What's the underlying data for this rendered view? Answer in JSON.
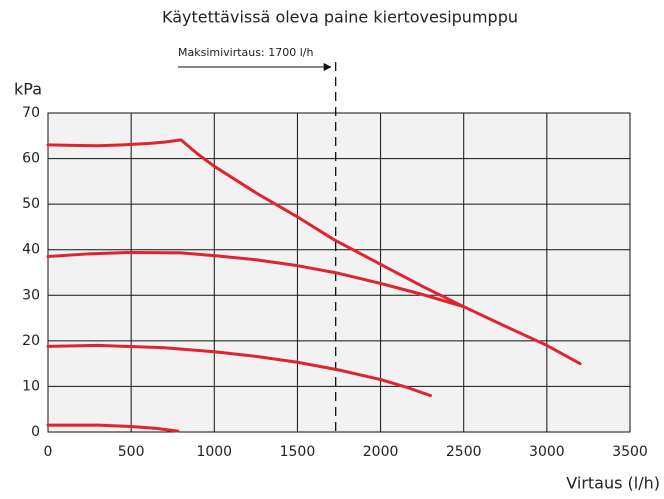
{
  "chart_data": {
    "type": "line",
    "title": "Käytettävissä oleva paine kiertovesipumppu",
    "ylabel": "kPa",
    "xlabel": "Virtaus (l/h)",
    "annotation": {
      "text": "Maksimivirtaus: 1700 l/h",
      "x": 1730
    },
    "color": "#e0242c",
    "series": [
      {
        "x": [
          0,
          150,
          300,
          450,
          600,
          700,
          800,
          900,
          1000,
          1250,
          1500,
          1720,
          2000,
          2250,
          2500,
          2750,
          3000,
          3200
        ],
        "values": [
          63,
          62.9,
          62.8,
          63,
          63.3,
          63.6,
          64.1,
          61,
          58.3,
          52.5,
          47.2,
          42.2,
          36.8,
          32,
          27.5,
          23.2,
          19,
          15
        ]
      },
      {
        "x": [
          0,
          250,
          500,
          800,
          1000,
          1250,
          1500,
          1750,
          2000,
          2250,
          2500
        ],
        "values": [
          38.5,
          39.1,
          39.4,
          39.3,
          38.7,
          37.8,
          36.5,
          34.8,
          32.6,
          30.2,
          27.5
        ]
      },
      {
        "x": [
          0,
          300,
          700,
          1000,
          1250,
          1500,
          1750,
          2000,
          2150,
          2300
        ],
        "values": [
          18.8,
          19,
          18.5,
          17.6,
          16.6,
          15.3,
          13.6,
          11.5,
          9.9,
          8
        ]
      },
      {
        "x": [
          0,
          300,
          500,
          650,
          780
        ],
        "values": [
          1.5,
          1.5,
          1.2,
          0.8,
          0.2
        ]
      }
    ],
    "xlim": [
      0,
      3500
    ],
    "xticks": [
      0,
      500,
      1000,
      1500,
      2000,
      2500,
      3000,
      3500
    ],
    "ylim": [
      0,
      70
    ],
    "yticks": [
      0,
      10,
      20,
      30,
      40,
      50,
      60,
      70
    ],
    "grid": true
  }
}
